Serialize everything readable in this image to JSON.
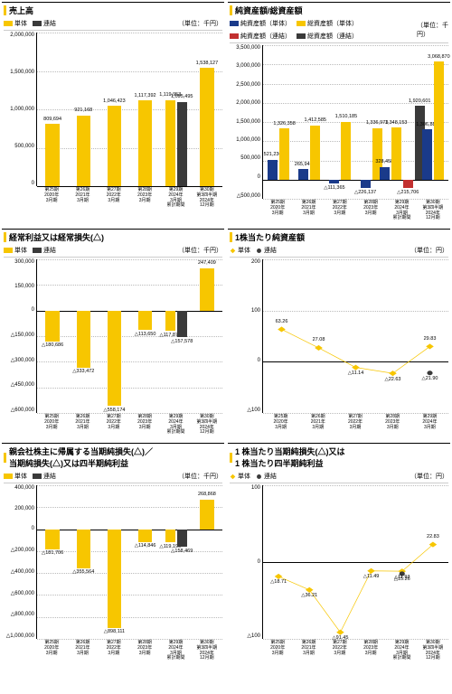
{
  "colors": {
    "yellow": "#f7c600",
    "dark": "#3a3a3a",
    "blue": "#1a3a8a",
    "red": "#c23030",
    "grid": "#bbbbbb"
  },
  "x_cats_full": [
    "第25期\n2020年\n3月期",
    "第26期\n2021年\n3月期",
    "第27期\n2022年\n3月期",
    "第28期\n2023年\n3月期",
    "第29期\n2024年\n3月期\n累計期間",
    "第30期\n第3四半期\n2024年\n12月期"
  ],
  "x_cats_5": [
    "第25期\n2020年\n3月期",
    "第26期\n2021年\n3月期",
    "第27期\n2022年\n3月期",
    "第28期\n2023年\n3月期",
    "第29期\n2024年\n3月期"
  ],
  "unit_sen_yen": "（単位：千円）",
  "unit_yen": "（単位：円）",
  "legend_tantai": "単体",
  "legend_renketsu": "連結",
  "p1": {
    "title": "売上高",
    "ymin": 0,
    "ymax": 2000000,
    "ystep": 500000,
    "bars_tantai": [
      809694,
      921168,
      1046423,
      1117392,
      1119953,
      1538127
    ],
    "bars_ren": [
      null,
      null,
      null,
      null,
      1095495,
      null
    ],
    "ren_dense": true
  },
  "p2": {
    "title": "純資産額/総資産額",
    "legend": [
      "純資産額（単体）",
      "総資産額（単体）",
      "純資産額（連結）",
      "総資産額（連結）"
    ],
    "legend_colors": [
      "#1a3a8a",
      "#f7c600",
      "#c23030",
      "#3a3a3a"
    ],
    "ymin": -500000,
    "ymax": 3500000,
    "ystep": 500000,
    "series": {
      "net_t": [
        521230,
        265947,
        -111365,
        -226137,
        328458,
        1306887
      ],
      "total_t": [
        1326358,
        1412585,
        1510185,
        1336973,
        1348153,
        3068870
      ],
      "net_r": [
        null,
        null,
        null,
        null,
        -215706,
        null
      ],
      "total_r": [
        null,
        null,
        null,
        null,
        1920601,
        null
      ]
    }
  },
  "p3": {
    "title": "経常利益又は経常損失(△)",
    "ymin": -600000,
    "ymax": 300000,
    "ystep": 150000,
    "bars_tantai": [
      -180686,
      -333472,
      -558174,
      -113650,
      -117877,
      247409
    ],
    "bars_ren": [
      null,
      null,
      null,
      null,
      -157578,
      null
    ]
  },
  "p4": {
    "title": "1株当たり純資産額",
    "ymin": -100,
    "ymax": 200,
    "ystep": 100,
    "line_t": [
      63.26,
      27.08,
      -11.14,
      -22.63,
      29.83
    ],
    "line_r": [
      null,
      null,
      null,
      null,
      -21.9
    ]
  },
  "p5": {
    "title": "親会社株主に帰属する当期純損失(△)／\n当期純損失(△)又は四半期純利益",
    "ymin": -1000000,
    "ymax": 400000,
    "ystep": 200000,
    "bars_tantai": [
      -181706,
      -355564,
      -898111,
      -114846,
      -119196,
      268868
    ],
    "bars_ren": [
      null,
      null,
      null,
      null,
      -158469,
      null
    ]
  },
  "p6": {
    "title": "1 株当たり当期純損失(△)又は\n1 株当たり四半期純利益",
    "ymin": -100,
    "ymax": 100,
    "ystep": 100,
    "line_t": [
      -18.71,
      -36.21,
      -91.45,
      -11.49,
      -11.93,
      22.83
    ],
    "line_r": [
      null,
      null,
      null,
      null,
      -15.26,
      null
    ],
    "extra_label": "11.49"
  }
}
